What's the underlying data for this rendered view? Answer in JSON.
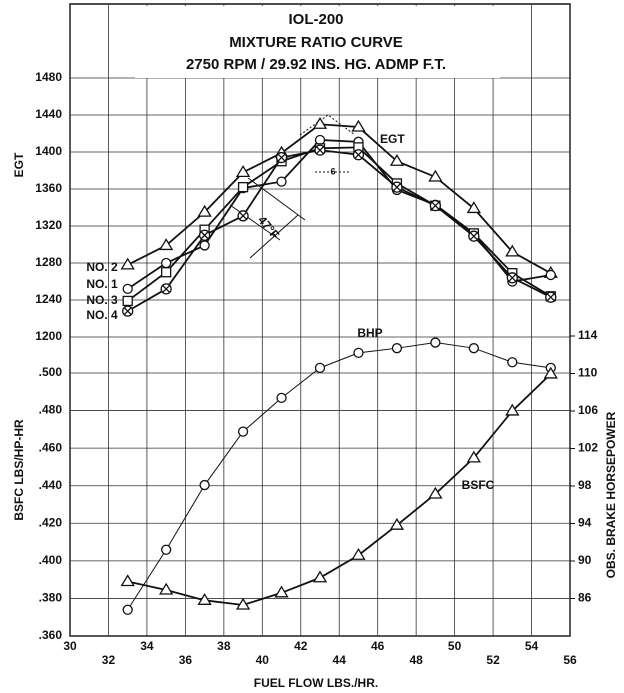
{
  "chart_data": {
    "type": "line",
    "title": "IOL-200",
    "subtitle": "MIXTURE RATIO CURVE",
    "subtitle2": "2750 RPM / 29.92 INS. HG. ADMP F.T.",
    "x_label": "FUEL FLOW LBS./HR.",
    "y_label": "EGT",
    "y2_label": "BSFC LBS/HP-HR",
    "y3_label": "OBS. BRAKE HORSEPOWER",
    "x": [
      33,
      35,
      37,
      39,
      41,
      43,
      45,
      47,
      49,
      51,
      53,
      55
    ],
    "xlim": [
      30,
      56
    ],
    "xticks": [
      30,
      32,
      34,
      36,
      38,
      40,
      42,
      44,
      46,
      48,
      50,
      52,
      54,
      56
    ],
    "ylim": [
      1200,
      1560
    ],
    "yticks": [
      1200,
      1240,
      1280,
      1320,
      1360,
      1400,
      1440,
      1480
    ],
    "y2lim": [
      0.36,
      0.5
    ],
    "y2ticks": [
      {
        "value": 0.36,
        "label": ".360"
      },
      {
        "value": 0.38,
        "label": ".380"
      },
      {
        "value": 0.4,
        "label": ".400"
      },
      {
        "value": 0.42,
        "label": ".420"
      },
      {
        "value": 0.44,
        "label": ".440"
      },
      {
        "value": 0.46,
        "label": ".460"
      },
      {
        "value": 0.48,
        "label": ".480"
      },
      {
        "value": 0.5,
        "label": ".500"
      }
    ],
    "y3lim": [
      82,
      114
    ],
    "y3ticks": [
      86,
      90,
      94,
      98,
      102,
      106,
      110,
      114
    ],
    "grid": true,
    "series": [
      {
        "name": "NO. 2",
        "color": "#111",
        "marker": "triangle",
        "axis": "y",
        "values": [
          1278,
          1299,
          1335,
          1378,
          1399,
          1430,
          1427,
          1390,
          1373,
          1339,
          1292,
          1269
        ]
      },
      {
        "name": "NO. 1",
        "color": "#111",
        "marker": "circle",
        "axis": "y",
        "values": [
          1252,
          1280,
          1299,
          1361,
          1368,
          1413,
          1411,
          1359,
          1343,
          1312,
          1260,
          1267
        ]
      },
      {
        "name": "NO. 3",
        "color": "#111",
        "marker": "square",
        "axis": "y",
        "values": [
          1239,
          1270,
          1316,
          1362,
          1390,
          1404,
          1405,
          1366,
          1342,
          1312,
          1269,
          1244
        ]
      },
      {
        "name": "NO. 4",
        "color": "#111",
        "marker": "circle-x",
        "axis": "y",
        "values": [
          1228,
          1252,
          1310,
          1331,
          1394,
          1402,
          1397,
          1362,
          1342,
          1309,
          1264,
          1243
        ]
      },
      {
        "name": "BHP",
        "color": "#111",
        "marker": "circle",
        "axis": "y3",
        "values": [
          84.8,
          91.2,
          98.1,
          103.8,
          107.4,
          110.6,
          112.2,
          112.7,
          113.3,
          112.7,
          111.2,
          110.6
        ]
      },
      {
        "name": "BSFC",
        "color": "#111",
        "marker": "triangle",
        "axis": "y2",
        "values": [
          0.389,
          0.3845,
          0.379,
          0.3765,
          0.383,
          0.391,
          0.403,
          0.419,
          0.4356,
          0.4548,
          0.4798,
          0.4995
        ]
      }
    ],
    "annotations": [
      "EGT",
      "47°F",
      "6"
    ]
  }
}
